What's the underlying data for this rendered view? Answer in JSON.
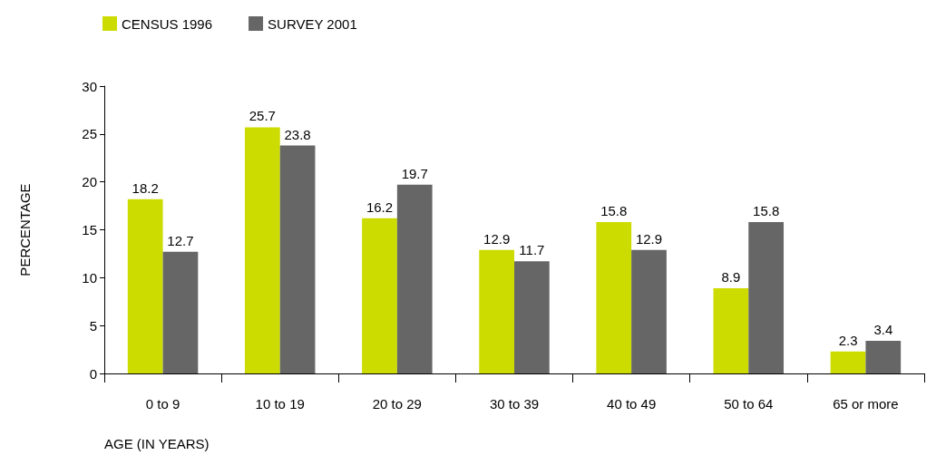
{
  "chart_data": {
    "type": "bar",
    "xlabel": "AGE (IN YEARS)",
    "ylabel": "PERCENTAGE",
    "categories": [
      "0 to 9",
      "10 to 19",
      "20 to 29",
      "30 to 39",
      "40 to 49",
      "50 to 64",
      "65 or more"
    ],
    "series": [
      {
        "name": "CENSUS 1996",
        "color": "#cddc00",
        "values": [
          18.2,
          25.7,
          16.2,
          12.9,
          15.8,
          8.9,
          2.3
        ]
      },
      {
        "name": "SURVEY 2001",
        "color": "#666666",
        "values": [
          12.7,
          23.8,
          19.7,
          11.7,
          12.9,
          15.8,
          3.4
        ]
      }
    ],
    "ylim": [
      0,
      30
    ],
    "yticks": [
      0,
      5,
      10,
      15,
      20,
      25,
      30
    ],
    "grid": false,
    "legend": "top left",
    "data_labels": true
  }
}
